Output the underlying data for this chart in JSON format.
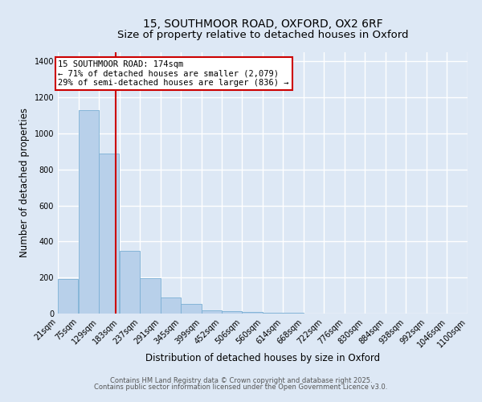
{
  "title1": "15, SOUTHMOOR ROAD, OXFORD, OX2 6RF",
  "title2": "Size of property relative to detached houses in Oxford",
  "xlabel": "Distribution of detached houses by size in Oxford",
  "ylabel": "Number of detached properties",
  "bar_color": "#b8d0ea",
  "bar_edge_color": "#7aafd4",
  "background_color": "#dde8f5",
  "grid_color": "#ffffff",
  "vline_color": "#cc0000",
  "vline_x": 174,
  "annotation_text": "15 SOUTHMOOR ROAD: 174sqm\n← 71% of detached houses are smaller (2,079)\n29% of semi-detached houses are larger (836) →",
  "annotation_box_color": "#ffffff",
  "annotation_box_edge": "#cc0000",
  "bin_edges": [
    21,
    75,
    129,
    183,
    237,
    291,
    345,
    399,
    452,
    506,
    560,
    614,
    668,
    722,
    776,
    830,
    884,
    938,
    992,
    1046,
    1100
  ],
  "bar_heights": [
    190,
    1130,
    890,
    350,
    195,
    90,
    55,
    20,
    15,
    10,
    5,
    3,
    2,
    1,
    1,
    1,
    0,
    0,
    0,
    1
  ],
  "ylim": [
    0,
    1450
  ],
  "yticks": [
    0,
    200,
    400,
    600,
    800,
    1000,
    1200,
    1400
  ],
  "footnote1": "Contains HM Land Registry data © Crown copyright and database right 2025.",
  "footnote2": "Contains public sector information licensed under the Open Government Licence v3.0.",
  "title_fontsize": 10,
  "subtitle_fontsize": 9.5,
  "tick_fontsize": 7,
  "label_fontsize": 8.5,
  "annot_fontsize": 7.5,
  "footnote_fontsize": 6
}
